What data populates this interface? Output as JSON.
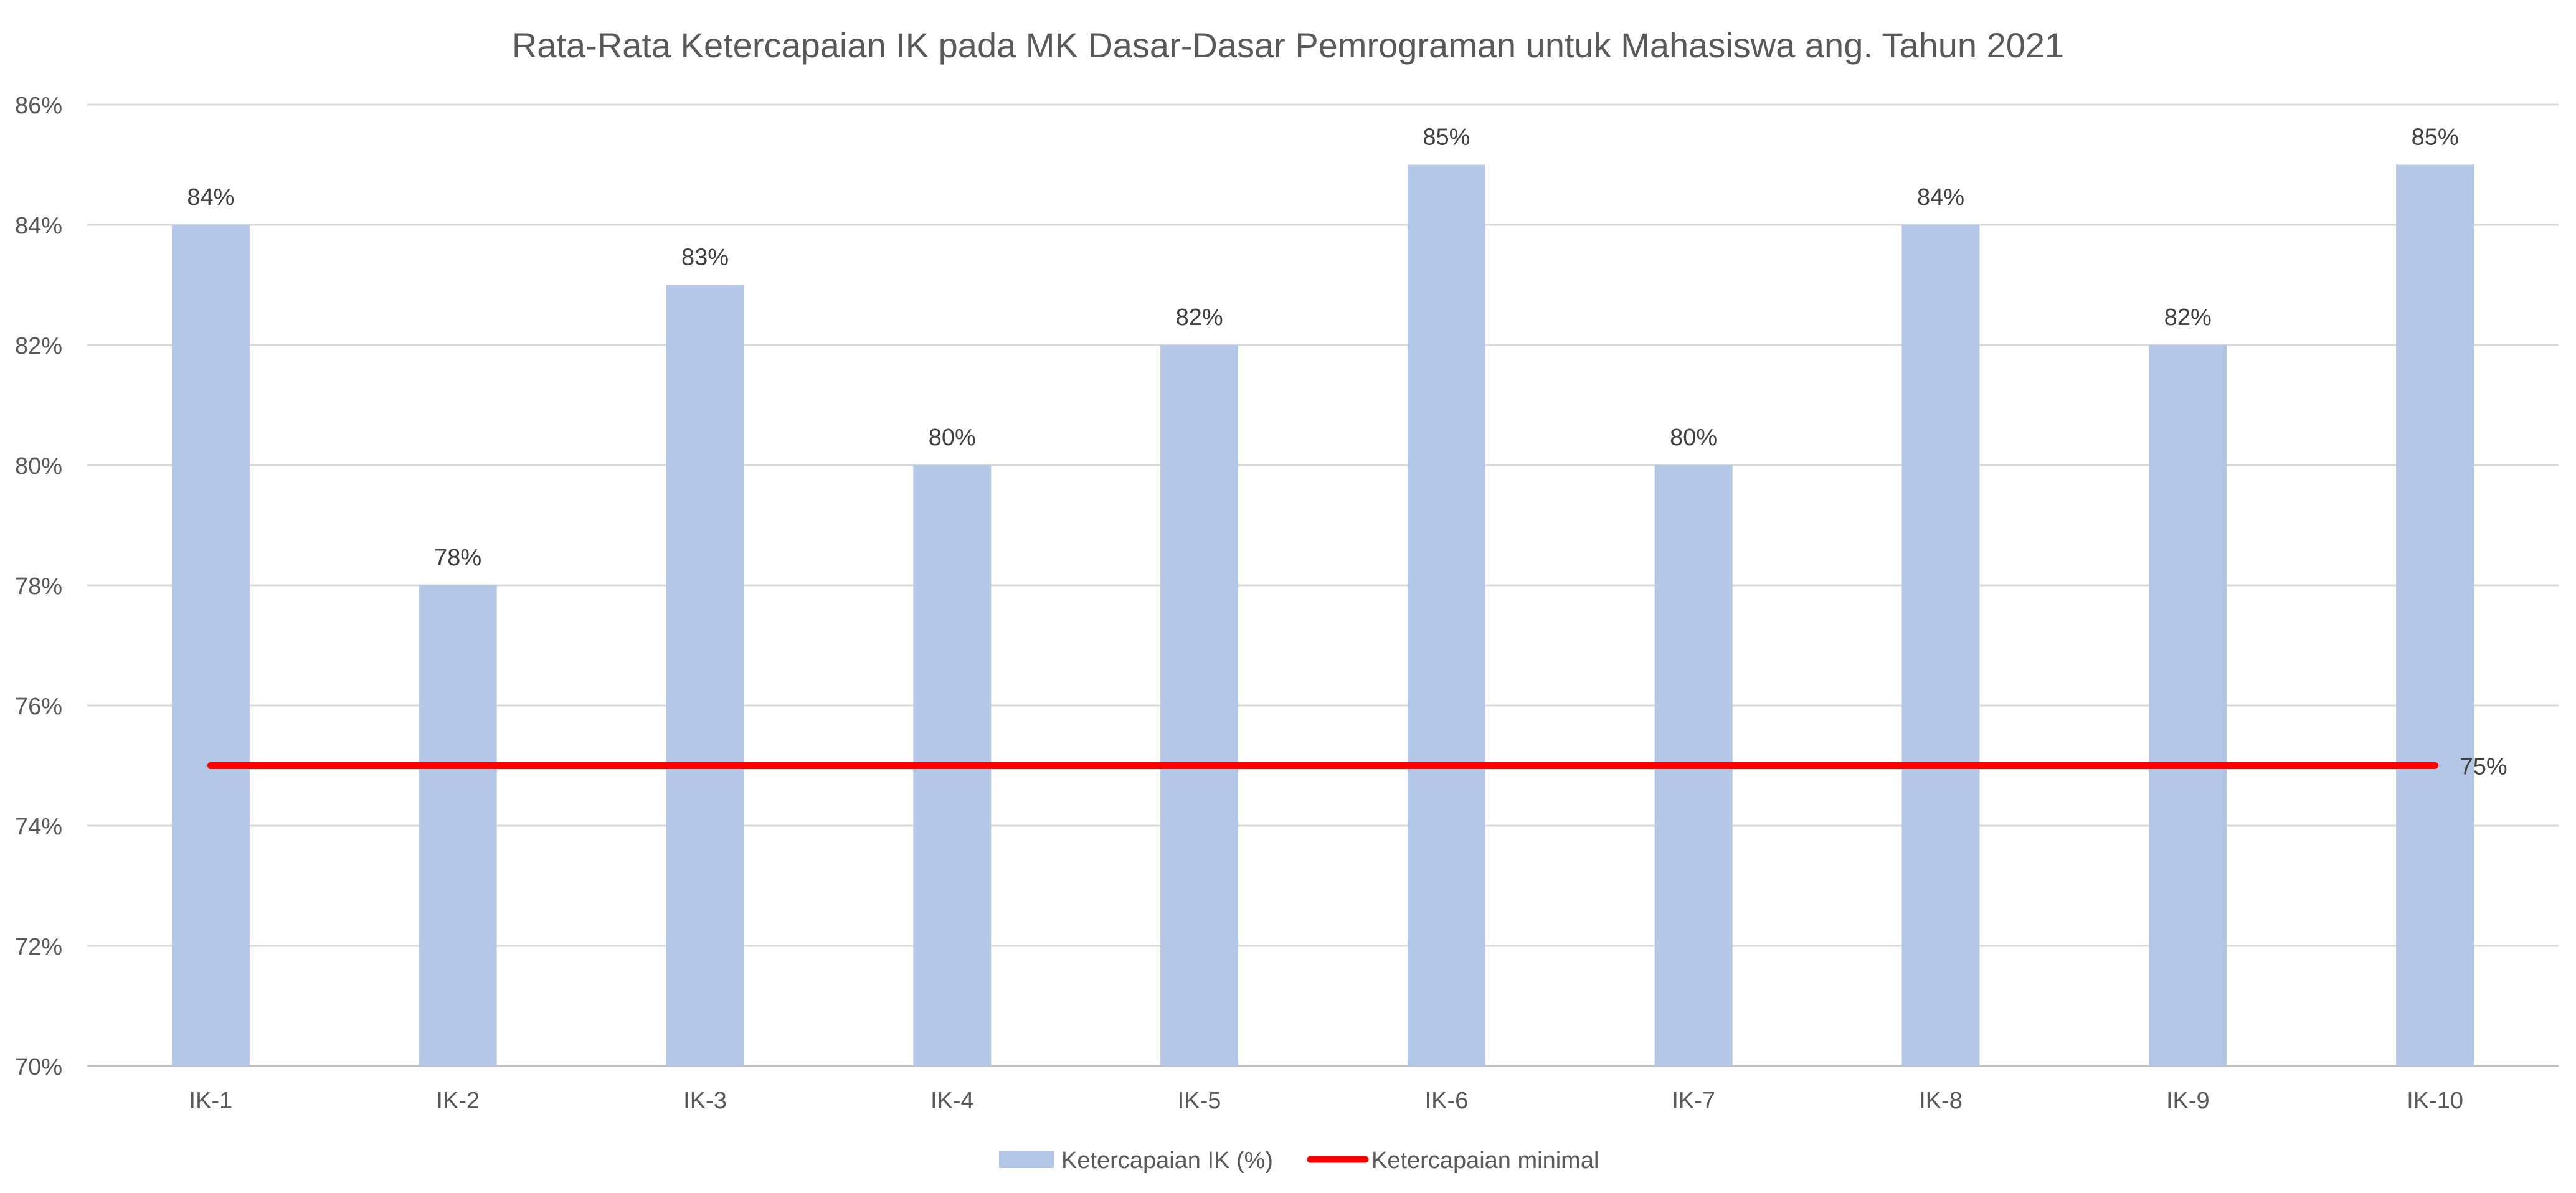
{
  "chart_data": {
    "type": "bar",
    "title": "Rata-Rata Ketercapaian IK pada MK Dasar-Dasar Pemrograman untuk Mahasiswa ang. Tahun 2021",
    "xlabel": "",
    "ylabel": "",
    "categories": [
      "IK-1",
      "IK-2",
      "IK-3",
      "IK-4",
      "IK-5",
      "IK-6",
      "IK-7",
      "IK-8",
      "IK-9",
      "IK-10"
    ],
    "series": [
      {
        "name": "Ketercapaian IK (%)",
        "type": "bar",
        "values": [
          84,
          78,
          83,
          80,
          82,
          85,
          80,
          84,
          82,
          85
        ],
        "data_labels": [
          "84%",
          "78%",
          "83%",
          "80%",
          "82%",
          "85%",
          "80%",
          "84%",
          "82%",
          "85%"
        ],
        "color": "#b4c7e7"
      },
      {
        "name": "Ketercapaian minimal",
        "type": "line",
        "values": [
          75,
          75,
          75,
          75,
          75,
          75,
          75,
          75,
          75,
          75
        ],
        "end_label": "75%",
        "color": "#ff0000"
      }
    ],
    "ylim": [
      70,
      86
    ],
    "yticks": [
      70,
      72,
      74,
      76,
      78,
      80,
      82,
      84,
      86
    ],
    "ytick_labels": [
      "70%",
      "72%",
      "74%",
      "76%",
      "78%",
      "80%",
      "82%",
      "84%",
      "86%"
    ],
    "grid": true,
    "legend_position": "bottom-center",
    "gridline_color": "#d9d9d9"
  }
}
